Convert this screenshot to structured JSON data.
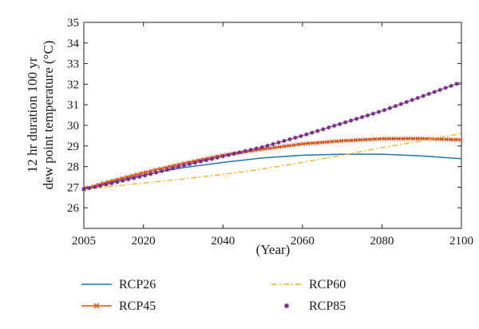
{
  "chart_data": {
    "type": "line",
    "ylabel_lines": [
      "12 hr duration 100 yr",
      "dew point temperature (°C)"
    ],
    "xlabel": "(Year)",
    "xlim": [
      2005,
      2100
    ],
    "ylim": [
      25,
      35
    ],
    "xticks": [
      2005,
      2020,
      2040,
      2060,
      2080,
      2100
    ],
    "yticks": [
      26,
      27,
      28,
      29,
      30,
      31,
      32,
      33,
      34,
      35
    ],
    "grid": false,
    "legend_placement": "bottom",
    "series": [
      {
        "name": "RCP26",
        "color": "#1f77b4",
        "style": "solid",
        "x": [
          2005,
          2010,
          2020,
          2030,
          2040,
          2050,
          2060,
          2070,
          2080,
          2090,
          2100
        ],
        "y": [
          26.9,
          27.15,
          27.6,
          27.95,
          28.2,
          28.42,
          28.55,
          28.6,
          28.6,
          28.52,
          28.38
        ]
      },
      {
        "name": "RCP45",
        "color": "#d95319",
        "style": "x-marker",
        "x": [
          2005,
          2010,
          2020,
          2030,
          2040,
          2050,
          2060,
          2070,
          2080,
          2090,
          2100
        ],
        "y": [
          26.9,
          27.2,
          27.7,
          28.15,
          28.55,
          28.85,
          29.1,
          29.25,
          29.35,
          29.36,
          29.3
        ]
      },
      {
        "name": "RCP60",
        "color": "#edb120",
        "style": "dash-dot",
        "x": [
          2005,
          2010,
          2020,
          2030,
          2040,
          2050,
          2060,
          2070,
          2080,
          2090,
          2100
        ],
        "y": [
          26.9,
          27.0,
          27.2,
          27.4,
          27.62,
          27.88,
          28.2,
          28.55,
          28.92,
          29.25,
          29.6
        ]
      },
      {
        "name": "RCP85",
        "color": "#7e2f8e",
        "style": "star-marker",
        "x": [
          2005,
          2010,
          2020,
          2030,
          2040,
          2050,
          2060,
          2070,
          2080,
          2090,
          2100
        ],
        "y": [
          26.9,
          27.1,
          27.55,
          28.05,
          28.5,
          28.95,
          29.5,
          30.1,
          30.7,
          31.4,
          32.1
        ]
      }
    ]
  }
}
